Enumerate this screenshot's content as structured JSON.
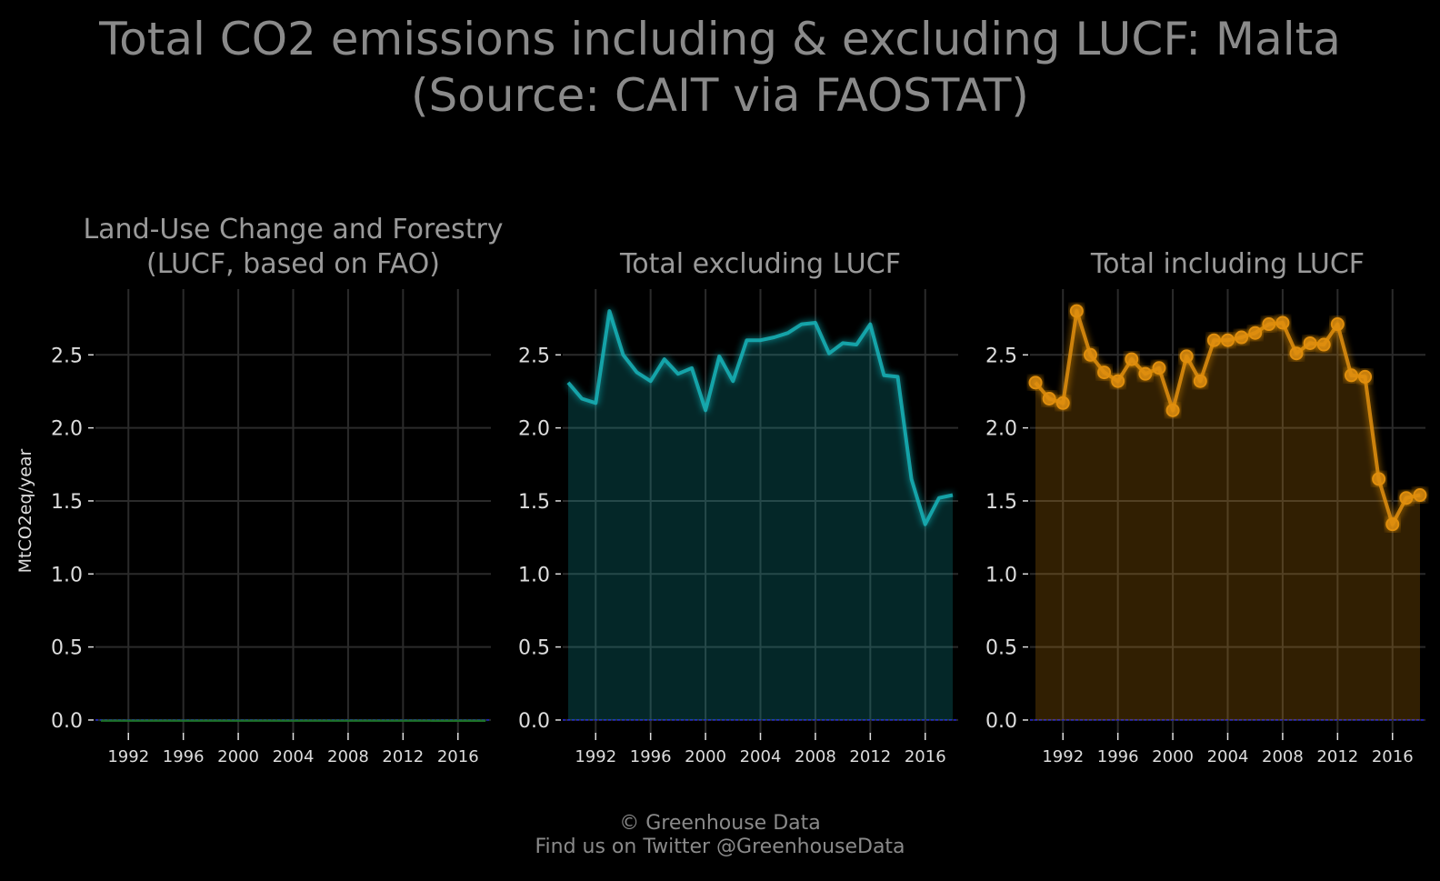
{
  "figure": {
    "title_line1": "Total CO2 emissions including & excluding LUCF: Malta",
    "title_line2": "(Source: CAIT via FAOSTAT)",
    "ylabel": "MtCO2eq/year",
    "footer_line1": "© Greenhouse Data",
    "footer_line2": "Find us on Twitter @GreenhouseData"
  },
  "chart_data": [
    {
      "type": "area",
      "title_lines": [
        "Land-Use Change and Forestry",
        "(LUCF, based on FAO)"
      ],
      "color": "#1f7a2a",
      "markers": false,
      "ylim": [
        -0.1,
        2.95
      ],
      "yticks": [
        "0.0",
        "0.5",
        "1.0",
        "1.5",
        "2.0",
        "2.5"
      ],
      "xticks": [
        "1992",
        "1996",
        "2000",
        "2004",
        "2008",
        "2012",
        "2016"
      ],
      "grid": true,
      "x": [
        1990,
        1991,
        1992,
        1993,
        1994,
        1995,
        1996,
        1997,
        1998,
        1999,
        2000,
        2001,
        2002,
        2003,
        2004,
        2005,
        2006,
        2007,
        2008,
        2009,
        2010,
        2011,
        2012,
        2013,
        2014,
        2015,
        2016,
        2017,
        2018
      ],
      "y": [
        0,
        0,
        0,
        0,
        0,
        0,
        0,
        0,
        0,
        0,
        0,
        0,
        0,
        0,
        0,
        0,
        0,
        0,
        0,
        0,
        0,
        0,
        0,
        0,
        0,
        -0.01,
        -0.01,
        -0.01,
        -0.01
      ]
    },
    {
      "type": "area",
      "title_lines": [
        "",
        "Total excluding LUCF"
      ],
      "color": "#14b3b8",
      "markers": false,
      "ylim": [
        -0.1,
        2.95
      ],
      "yticks": [
        "0.0",
        "0.5",
        "1.0",
        "1.5",
        "2.0",
        "2.5"
      ],
      "xticks": [
        "1992",
        "1996",
        "2000",
        "2004",
        "2008",
        "2012",
        "2016"
      ],
      "grid": true,
      "x": [
        1990,
        1991,
        1992,
        1993,
        1994,
        1995,
        1996,
        1997,
        1998,
        1999,
        2000,
        2001,
        2002,
        2003,
        2004,
        2005,
        2006,
        2007,
        2008,
        2009,
        2010,
        2011,
        2012,
        2013,
        2014,
        2015,
        2016,
        2017,
        2018
      ],
      "y": [
        2.31,
        2.2,
        2.17,
        2.8,
        2.5,
        2.38,
        2.32,
        2.47,
        2.37,
        2.41,
        2.12,
        2.49,
        2.32,
        2.6,
        2.6,
        2.62,
        2.65,
        2.71,
        2.72,
        2.51,
        2.58,
        2.57,
        2.71,
        2.36,
        2.35,
        1.65,
        1.34,
        1.52,
        1.54
      ]
    },
    {
      "type": "area",
      "title_lines": [
        "",
        "Total including LUCF"
      ],
      "color": "#e08e0b",
      "markers": true,
      "ylim": [
        -0.1,
        2.95
      ],
      "yticks": [
        "0.0",
        "0.5",
        "1.0",
        "1.5",
        "2.0",
        "2.5"
      ],
      "xticks": [
        "1992",
        "1996",
        "2000",
        "2004",
        "2008",
        "2012",
        "2016"
      ],
      "grid": true,
      "x": [
        1990,
        1991,
        1992,
        1993,
        1994,
        1995,
        1996,
        1997,
        1998,
        1999,
        2000,
        2001,
        2002,
        2003,
        2004,
        2005,
        2006,
        2007,
        2008,
        2009,
        2010,
        2011,
        2012,
        2013,
        2014,
        2015,
        2016,
        2017,
        2018
      ],
      "y": [
        2.31,
        2.2,
        2.17,
        2.8,
        2.5,
        2.38,
        2.32,
        2.47,
        2.37,
        2.41,
        2.12,
        2.49,
        2.32,
        2.6,
        2.6,
        2.62,
        2.65,
        2.71,
        2.72,
        2.51,
        2.58,
        2.57,
        2.71,
        2.36,
        2.35,
        1.65,
        1.34,
        1.52,
        1.54
      ]
    }
  ]
}
